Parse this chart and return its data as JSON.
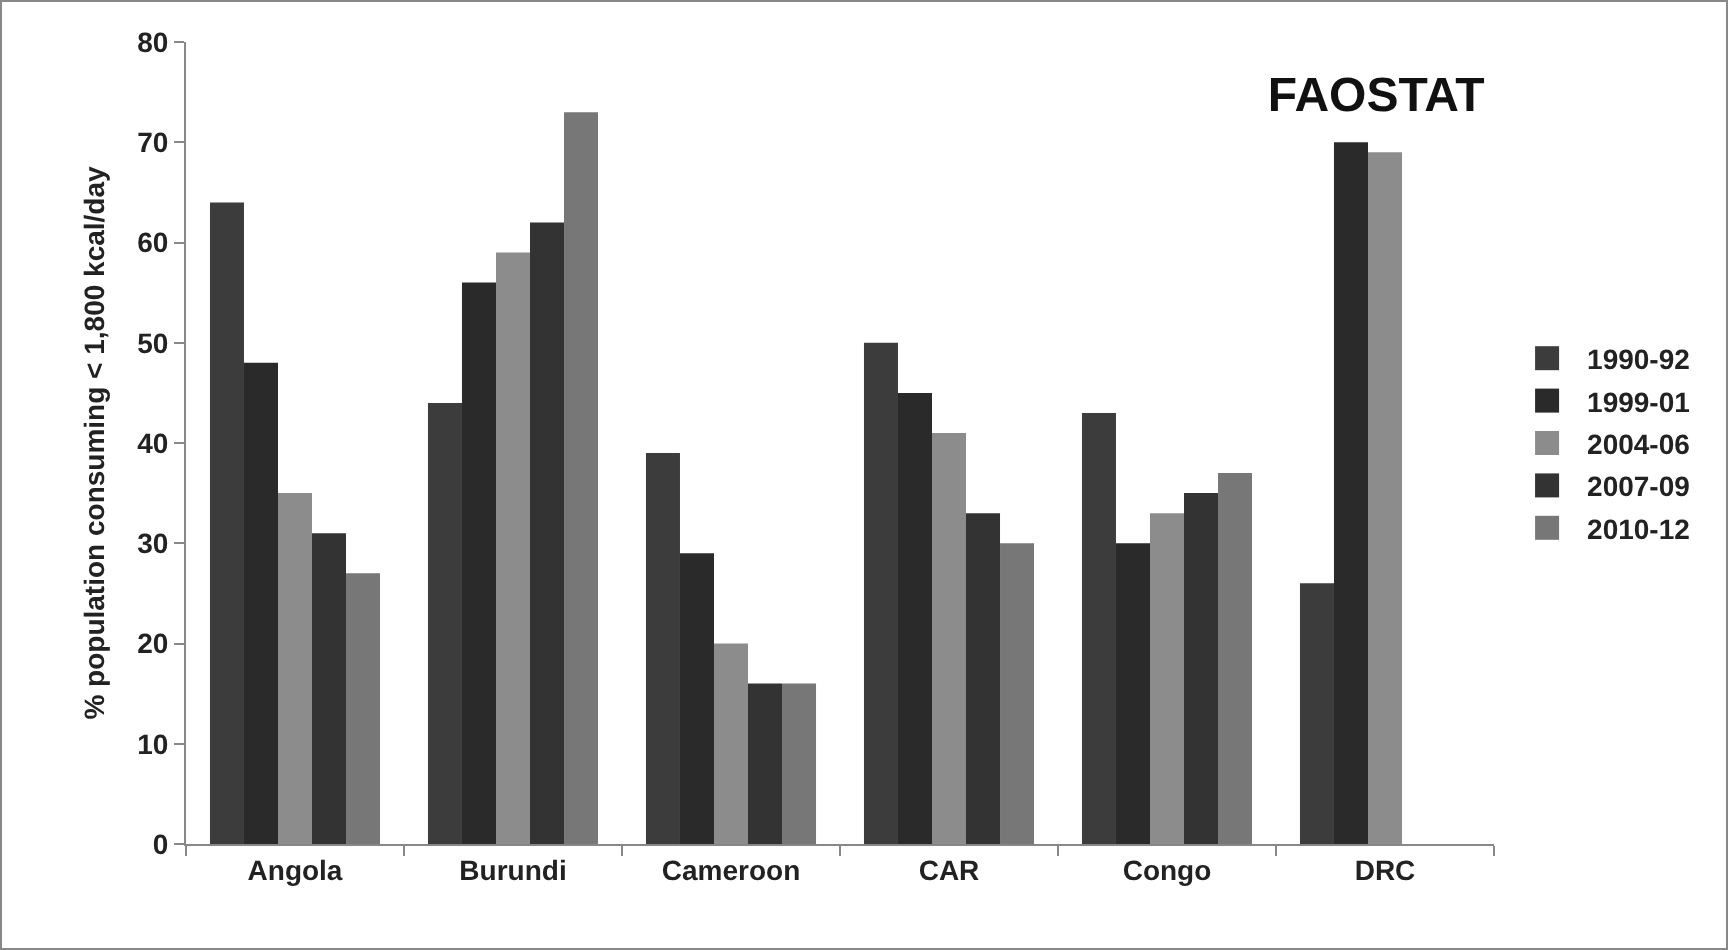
{
  "chart_data": {
    "type": "bar",
    "title": "FAOSTAT",
    "ylabel": "% population consuming < 1,800 kcal/day",
    "categories": [
      "Angola",
      "Burundi",
      "Cameroon",
      "CAR",
      "Congo",
      "DRC"
    ],
    "series": [
      {
        "name": "1990-92",
        "color": "#3c3c3c",
        "values": [
          64,
          44,
          39,
          50,
          43,
          26
        ]
      },
      {
        "name": "1999-01",
        "color": "#2a2a2a",
        "values": [
          48,
          56,
          29,
          45,
          30,
          70
        ]
      },
      {
        "name": "2004-06",
        "color": "#8c8c8c",
        "values": [
          35,
          59,
          20,
          41,
          33,
          69
        ]
      },
      {
        "name": "2007-09",
        "color": "#333333",
        "values": [
          31,
          62,
          16,
          33,
          35,
          null
        ]
      },
      {
        "name": "2010-12",
        "color": "#777777",
        "values": [
          27,
          73,
          16,
          30,
          37,
          null
        ]
      }
    ],
    "ylim": [
      0,
      80
    ],
    "yticks": [
      0,
      10,
      20,
      30,
      40,
      50,
      60,
      70,
      80
    ],
    "grid": false,
    "legend": "right"
  }
}
